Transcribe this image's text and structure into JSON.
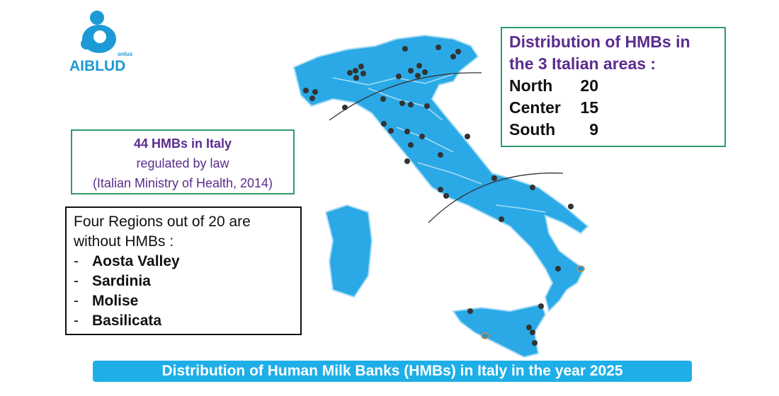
{
  "logo": {
    "name": "AIBLUD",
    "tag": "onlus"
  },
  "info_box": {
    "title": "44 HMBs in Italy",
    "line1": "regulated by law",
    "line2": "(Italian Ministry of Health, 2014)"
  },
  "regions_box": {
    "intro_lines": [
      "Four Regions out of 20 are",
      "without HMBs :"
    ],
    "bullet": "-",
    "items": [
      "Aosta Valley",
      "Sardinia",
      "Molise",
      "Basilicata"
    ]
  },
  "areas_box": {
    "title_lines": [
      "Distribution of HMBs in",
      "the 3 Italian areas :"
    ],
    "rows": [
      {
        "area": "North",
        "count": 20
      },
      {
        "area": "Center",
        "count": 15
      },
      {
        "area": "South",
        "count": 9
      }
    ]
  },
  "footer": "Distribution of Human Milk Banks (HMBs) in Italy in the year 2025"
}
